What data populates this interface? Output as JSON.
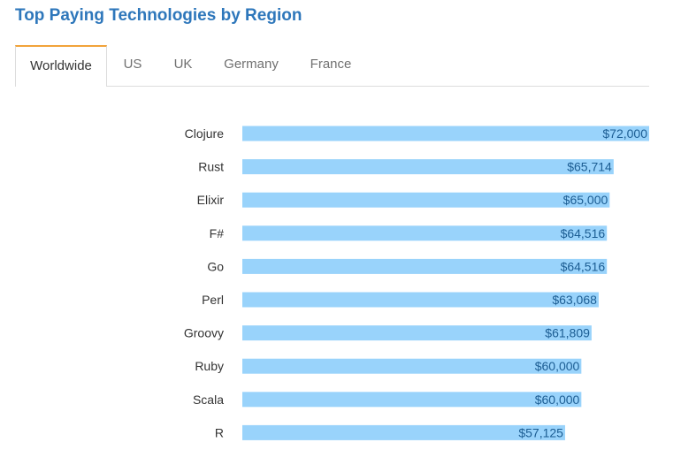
{
  "title": "Top Paying Technologies by Region",
  "tabs": [
    {
      "label": "Worldwide",
      "active": true
    },
    {
      "label": "US",
      "active": false
    },
    {
      "label": "UK",
      "active": false
    },
    {
      "label": "Germany",
      "active": false
    },
    {
      "label": "France",
      "active": false
    }
  ],
  "colors": {
    "title": "#2e77bb",
    "active_tab_accent": "#f2a33a",
    "bar": "#99d3fb",
    "value_label": "#1c5d93"
  },
  "chart_data": {
    "type": "bar",
    "orientation": "horizontal",
    "categories": [
      "Clojure",
      "Rust",
      "Elixir",
      "F#",
      "Go",
      "Perl",
      "Groovy",
      "Ruby",
      "Scala",
      "R"
    ],
    "values": [
      72000,
      65714,
      65000,
      64516,
      64516,
      63068,
      61809,
      60000,
      60000,
      57125
    ],
    "value_labels": [
      "$72,000",
      "$65,714",
      "$65,000",
      "$64,516",
      "$64,516",
      "$63,068",
      "$61,809",
      "$60,000",
      "$60,000",
      "$57,125"
    ],
    "xlim": [
      0,
      72000
    ],
    "grid": false,
    "legend": false
  }
}
